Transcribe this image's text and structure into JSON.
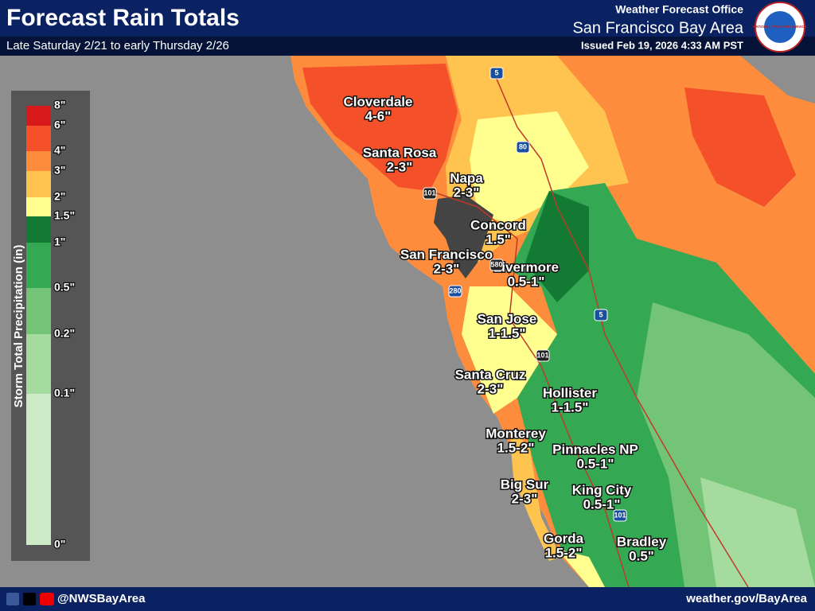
{
  "header": {
    "title": "Forecast Rain Totals",
    "subtitle": "Late Saturday 2/21 to early Thursday 2/26",
    "office_line": "Weather Forecast Office",
    "office_name": "San Francisco Bay Area",
    "issued": "Issued Feb 19, 2026 4:33 AM PST",
    "logo_text": "NATIONAL WEATHER SERVICE"
  },
  "legend": {
    "title": "Storm Total Precipitation (in)",
    "ticks": [
      "8\"",
      "6\"",
      "4\"",
      "3\"",
      "2\"",
      "1.5\"",
      "1\"",
      "0.5\"",
      "0.2\"",
      "0.1\"",
      "0\""
    ],
    "colors": [
      "#d7191c",
      "#f4502a",
      "#fd8d3c",
      "#fec44f",
      "#ffff8f",
      "#137a33",
      "#34a853",
      "#73c476",
      "#a6dba0",
      "#cdebc6"
    ]
  },
  "places": [
    {
      "name": "Cloverdale",
      "amount": "4-6\""
    },
    {
      "name": "Santa Rosa",
      "amount": "2-3\""
    },
    {
      "name": "Napa",
      "amount": "2-3\""
    },
    {
      "name": "Concord",
      "amount": "1.5\""
    },
    {
      "name": "San Francisco",
      "amount": "2-3\""
    },
    {
      "name": "Livermore",
      "amount": "0.5-1\""
    },
    {
      "name": "San Jose",
      "amount": "1-1.5\""
    },
    {
      "name": "Santa Cruz",
      "amount": "2-3\""
    },
    {
      "name": "Hollister",
      "amount": "1-1.5\""
    },
    {
      "name": "Monterey",
      "amount": "1.5-2\""
    },
    {
      "name": "Pinnacles NP",
      "amount": "0.5-1\""
    },
    {
      "name": "Big Sur",
      "amount": "2-3\""
    },
    {
      "name": "King City",
      "amount": "0.5-1\""
    },
    {
      "name": "Gorda",
      "amount": "1.5-2\""
    },
    {
      "name": "Bradley",
      "amount": "0.5\""
    }
  ],
  "highways": [
    "5",
    "80",
    "101",
    "580",
    "280",
    "5",
    "101",
    "101"
  ],
  "footer": {
    "handle": "@NWSBayArea",
    "url": "weather.gov/BayArea"
  }
}
